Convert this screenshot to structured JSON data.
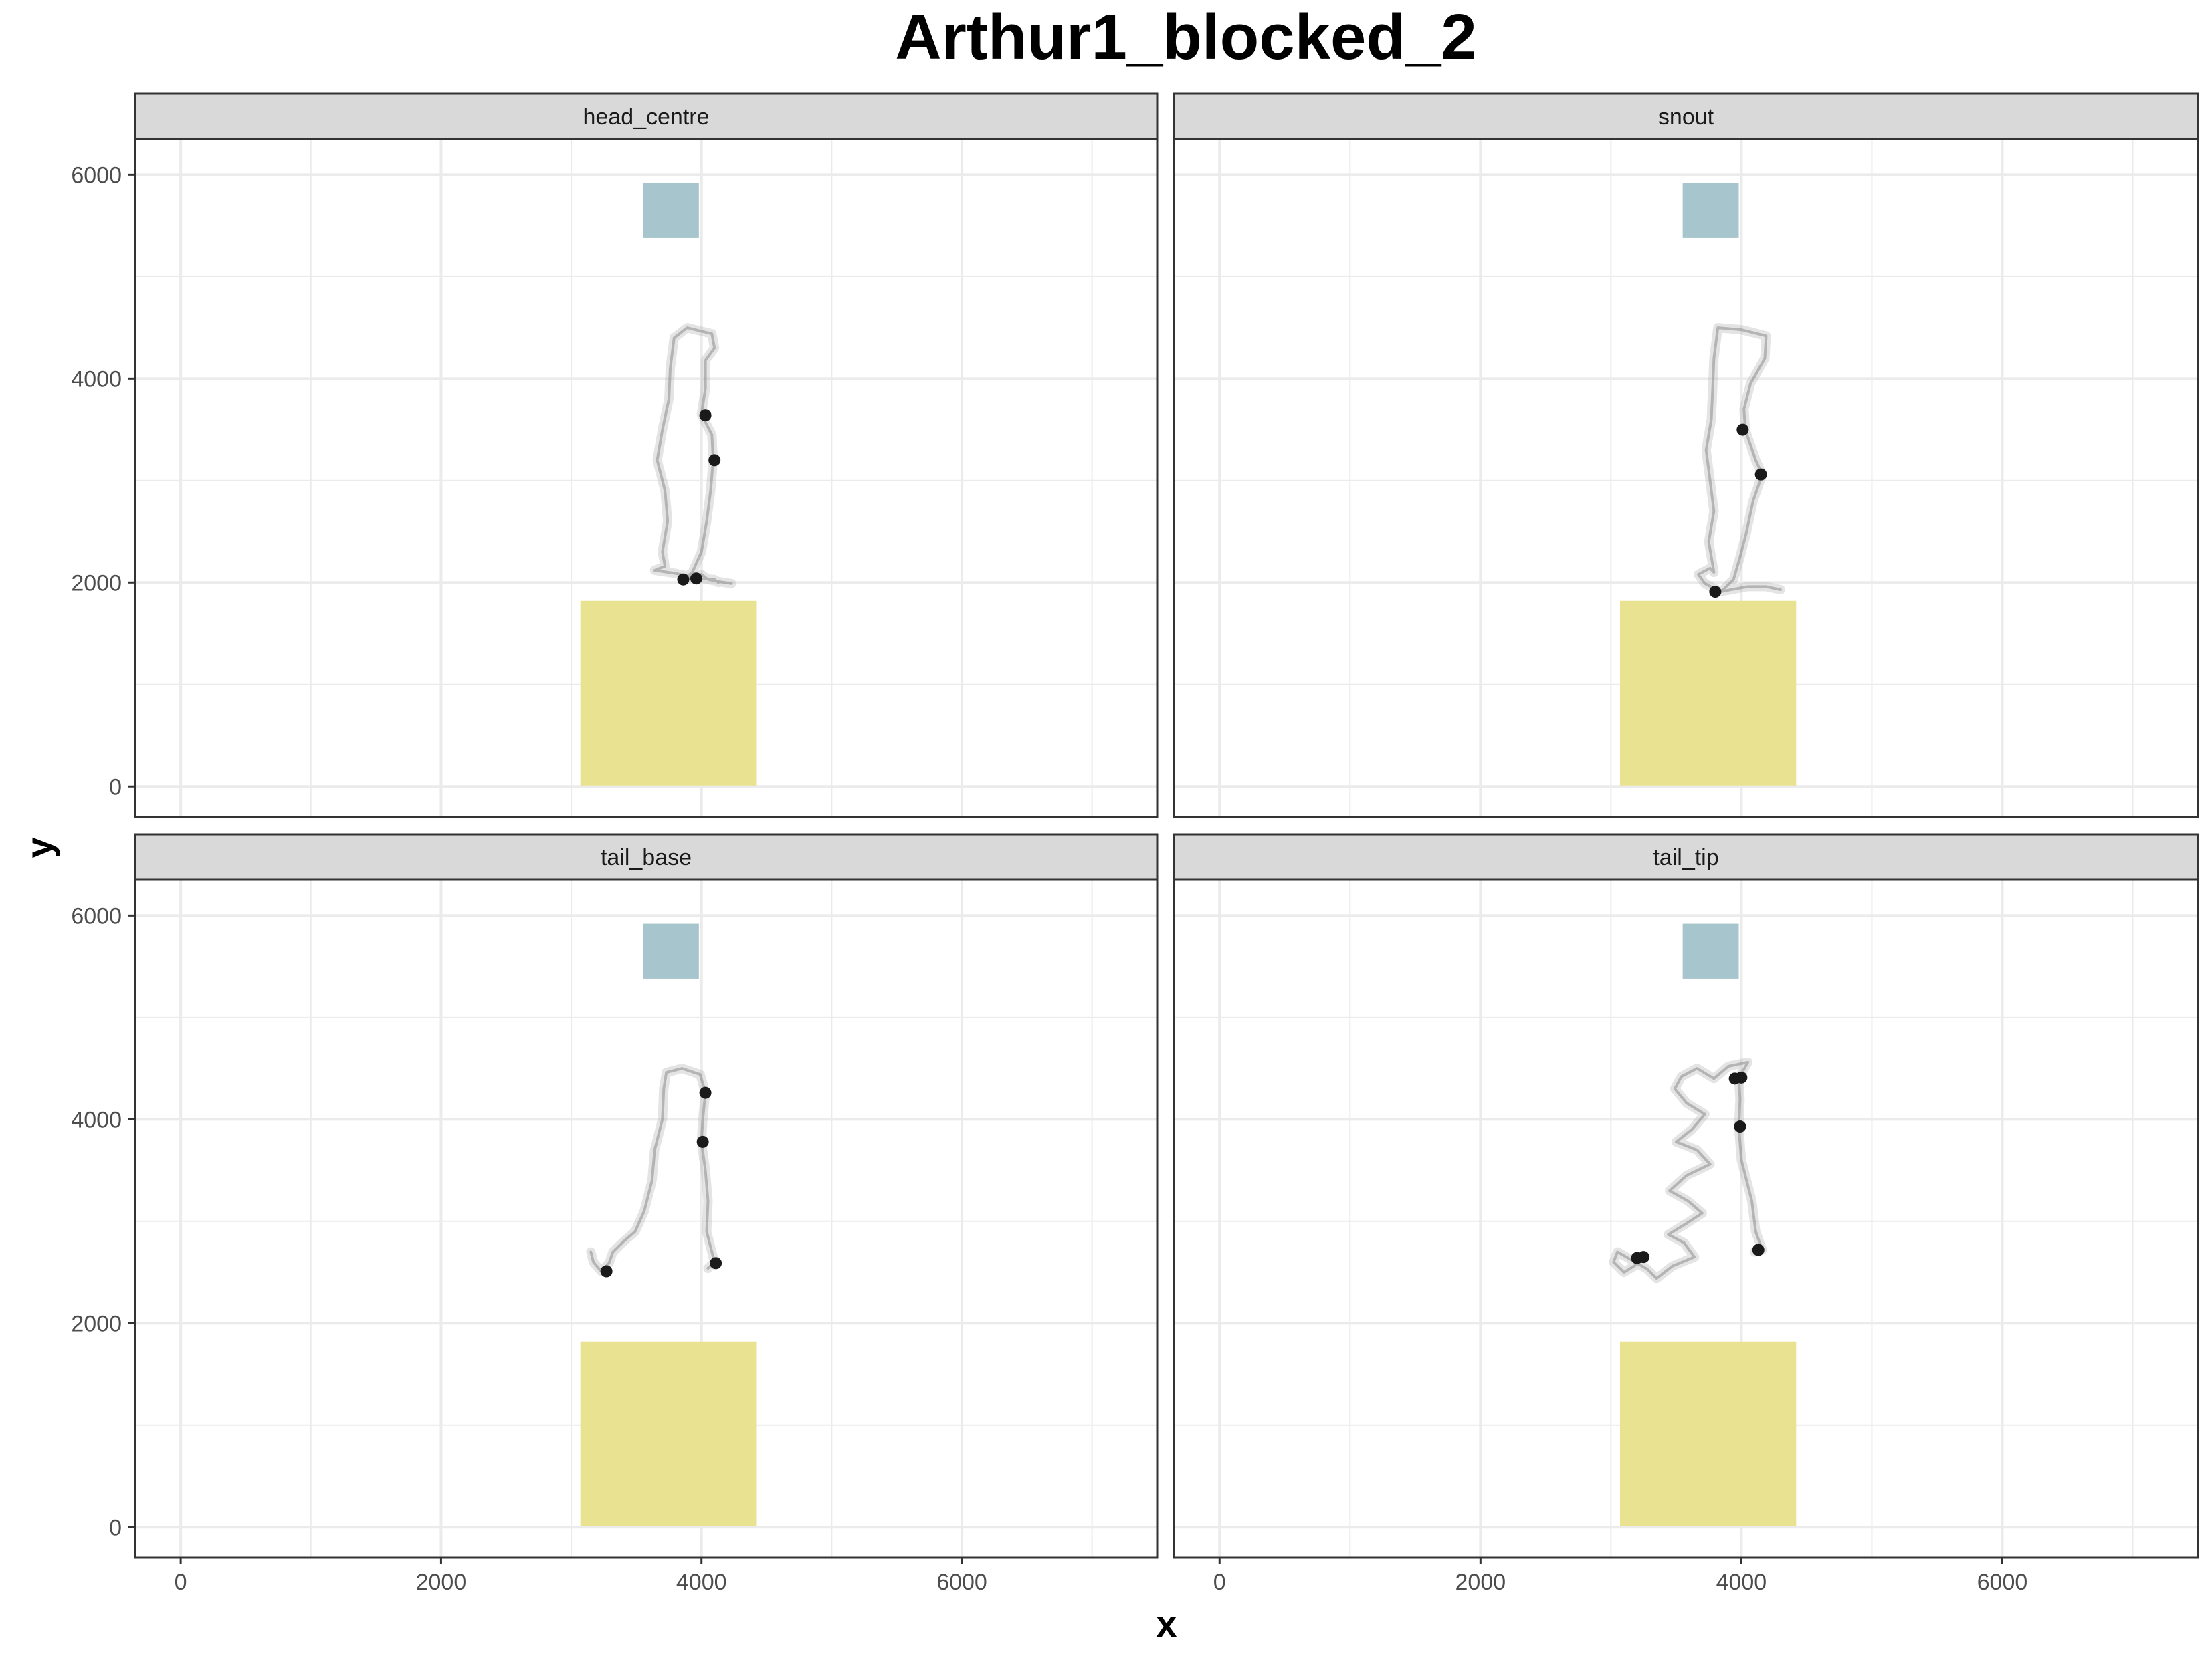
{
  "chart_data": {
    "type": "scatter",
    "title": "Arthur1_blocked_2",
    "xlabel": "x",
    "ylabel": "y",
    "xlim": [
      -350,
      7500
    ],
    "ylim": [
      -300,
      6350
    ],
    "x_ticks": [
      0,
      2000,
      4000,
      6000
    ],
    "x_ticks_minor": [
      1000,
      3000,
      5000,
      7000
    ],
    "y_ticks": [
      0,
      2000,
      4000,
      6000
    ],
    "y_ticks_minor": [
      1000,
      3000,
      5000
    ],
    "x_tick_labels": [
      "0",
      "2000",
      "4000",
      "6000"
    ],
    "y_tick_labels": [
      "0",
      "2000",
      "4000",
      "6000"
    ],
    "grid": true,
    "colors": {
      "target_zone": "#a6c5cc",
      "start_zone": "#e9e291",
      "track": "#b3b3b3",
      "points": "#1a1a1a",
      "strip_fill": "#d9d9d9",
      "grid": "#ebebeb"
    },
    "zones": {
      "target": {
        "x0": 3550,
        "x1": 3980,
        "y0": 5380,
        "y1": 5920
      },
      "start": {
        "x0": 3070,
        "x1": 4420,
        "y0": 10,
        "y1": 1820
      }
    },
    "facets": [
      {
        "name": "head_centre",
        "track": [
          [
            4130,
            2000
          ],
          [
            4100,
            2030
          ],
          [
            3980,
            2040
          ],
          [
            3800,
            2090
          ],
          [
            3640,
            2120
          ],
          [
            3720,
            2160
          ],
          [
            3700,
            2300
          ],
          [
            3740,
            2600
          ],
          [
            3720,
            2900
          ],
          [
            3660,
            3200
          ],
          [
            3700,
            3500
          ],
          [
            3750,
            3800
          ],
          [
            3760,
            4100
          ],
          [
            3790,
            4400
          ],
          [
            3890,
            4500
          ],
          [
            4080,
            4440
          ],
          [
            4100,
            4300
          ],
          [
            4030,
            4180
          ],
          [
            4030,
            3900
          ],
          [
            4000,
            3650
          ],
          [
            4080,
            3450
          ],
          [
            4090,
            3200
          ],
          [
            4070,
            2900
          ],
          [
            4040,
            2600
          ],
          [
            4000,
            2300
          ],
          [
            3930,
            2100
          ],
          [
            3860,
            2030
          ],
          [
            3940,
            2050
          ],
          [
            4000,
            2080
          ],
          [
            4050,
            2030
          ],
          [
            4130,
            2010
          ],
          [
            4230,
            1990
          ]
        ],
        "points": [
          [
            4030,
            3640
          ],
          [
            4100,
            3200
          ],
          [
            3860,
            2030
          ],
          [
            3960,
            2040
          ]
        ]
      },
      {
        "name": "snout",
        "track": [
          [
            4300,
            1930
          ],
          [
            4190,
            1960
          ],
          [
            4050,
            1960
          ],
          [
            3920,
            1930
          ],
          [
            3840,
            1910
          ],
          [
            3720,
            1990
          ],
          [
            3670,
            2080
          ],
          [
            3760,
            2140
          ],
          [
            3790,
            2100
          ],
          [
            3750,
            2400
          ],
          [
            3790,
            2700
          ],
          [
            3760,
            3000
          ],
          [
            3730,
            3300
          ],
          [
            3770,
            3600
          ],
          [
            3780,
            3900
          ],
          [
            3790,
            4200
          ],
          [
            3820,
            4500
          ],
          [
            4000,
            4480
          ],
          [
            4190,
            4420
          ],
          [
            4180,
            4200
          ],
          [
            4070,
            3950
          ],
          [
            4020,
            3700
          ],
          [
            4030,
            3500
          ],
          [
            4110,
            3200
          ],
          [
            4160,
            3060
          ],
          [
            4090,
            2800
          ],
          [
            4040,
            2500
          ],
          [
            3990,
            2250
          ],
          [
            3940,
            2030
          ],
          [
            3860,
            1930
          ],
          [
            3800,
            1900
          ]
        ],
        "points": [
          [
            4010,
            3500
          ],
          [
            4150,
            3060
          ],
          [
            3800,
            1910
          ]
        ]
      },
      {
        "name": "tail_base",
        "track": [
          [
            4050,
            2540
          ],
          [
            4100,
            2600
          ],
          [
            4040,
            2900
          ],
          [
            4050,
            3200
          ],
          [
            4030,
            3500
          ],
          [
            4000,
            3780
          ],
          [
            4010,
            4000
          ],
          [
            4030,
            4260
          ],
          [
            3990,
            4440
          ],
          [
            3850,
            4500
          ],
          [
            3730,
            4460
          ],
          [
            3710,
            4300
          ],
          [
            3700,
            4000
          ],
          [
            3640,
            3700
          ],
          [
            3620,
            3400
          ],
          [
            3560,
            3100
          ],
          [
            3490,
            2900
          ],
          [
            3400,
            2800
          ],
          [
            3320,
            2700
          ],
          [
            3290,
            2590
          ],
          [
            3230,
            2510
          ],
          [
            3170,
            2600
          ],
          [
            3150,
            2700
          ]
        ],
        "points": [
          [
            4030,
            4260
          ],
          [
            4010,
            3780
          ],
          [
            4110,
            2590
          ],
          [
            3270,
            2510
          ]
        ]
      },
      {
        "name": "tail_tip",
        "track": [
          [
            4100,
            2700
          ],
          [
            4160,
            2720
          ],
          [
            4110,
            2900
          ],
          [
            4080,
            3200
          ],
          [
            4000,
            3600
          ],
          [
            3980,
            3930
          ],
          [
            3990,
            4200
          ],
          [
            3980,
            4400
          ],
          [
            4050,
            4560
          ],
          [
            3900,
            4520
          ],
          [
            3790,
            4400
          ],
          [
            3660,
            4500
          ],
          [
            3540,
            4420
          ],
          [
            3490,
            4300
          ],
          [
            3580,
            4160
          ],
          [
            3720,
            4050
          ],
          [
            3620,
            3900
          ],
          [
            3500,
            3780
          ],
          [
            3660,
            3700
          ],
          [
            3760,
            3560
          ],
          [
            3580,
            3450
          ],
          [
            3450,
            3300
          ],
          [
            3590,
            3200
          ],
          [
            3700,
            3080
          ],
          [
            3580,
            2980
          ],
          [
            3440,
            2870
          ],
          [
            3560,
            2790
          ],
          [
            3640,
            2650
          ],
          [
            3470,
            2560
          ],
          [
            3350,
            2440
          ],
          [
            3280,
            2530
          ],
          [
            3160,
            2620
          ],
          [
            3050,
            2700
          ],
          [
            3020,
            2600
          ],
          [
            3100,
            2500
          ],
          [
            3200,
            2580
          ]
        ],
        "points": [
          [
            3950,
            4400
          ],
          [
            4000,
            4410
          ],
          [
            3990,
            3930
          ],
          [
            4130,
            2720
          ],
          [
            3200,
            2640
          ],
          [
            3250,
            2650
          ]
        ]
      }
    ]
  }
}
